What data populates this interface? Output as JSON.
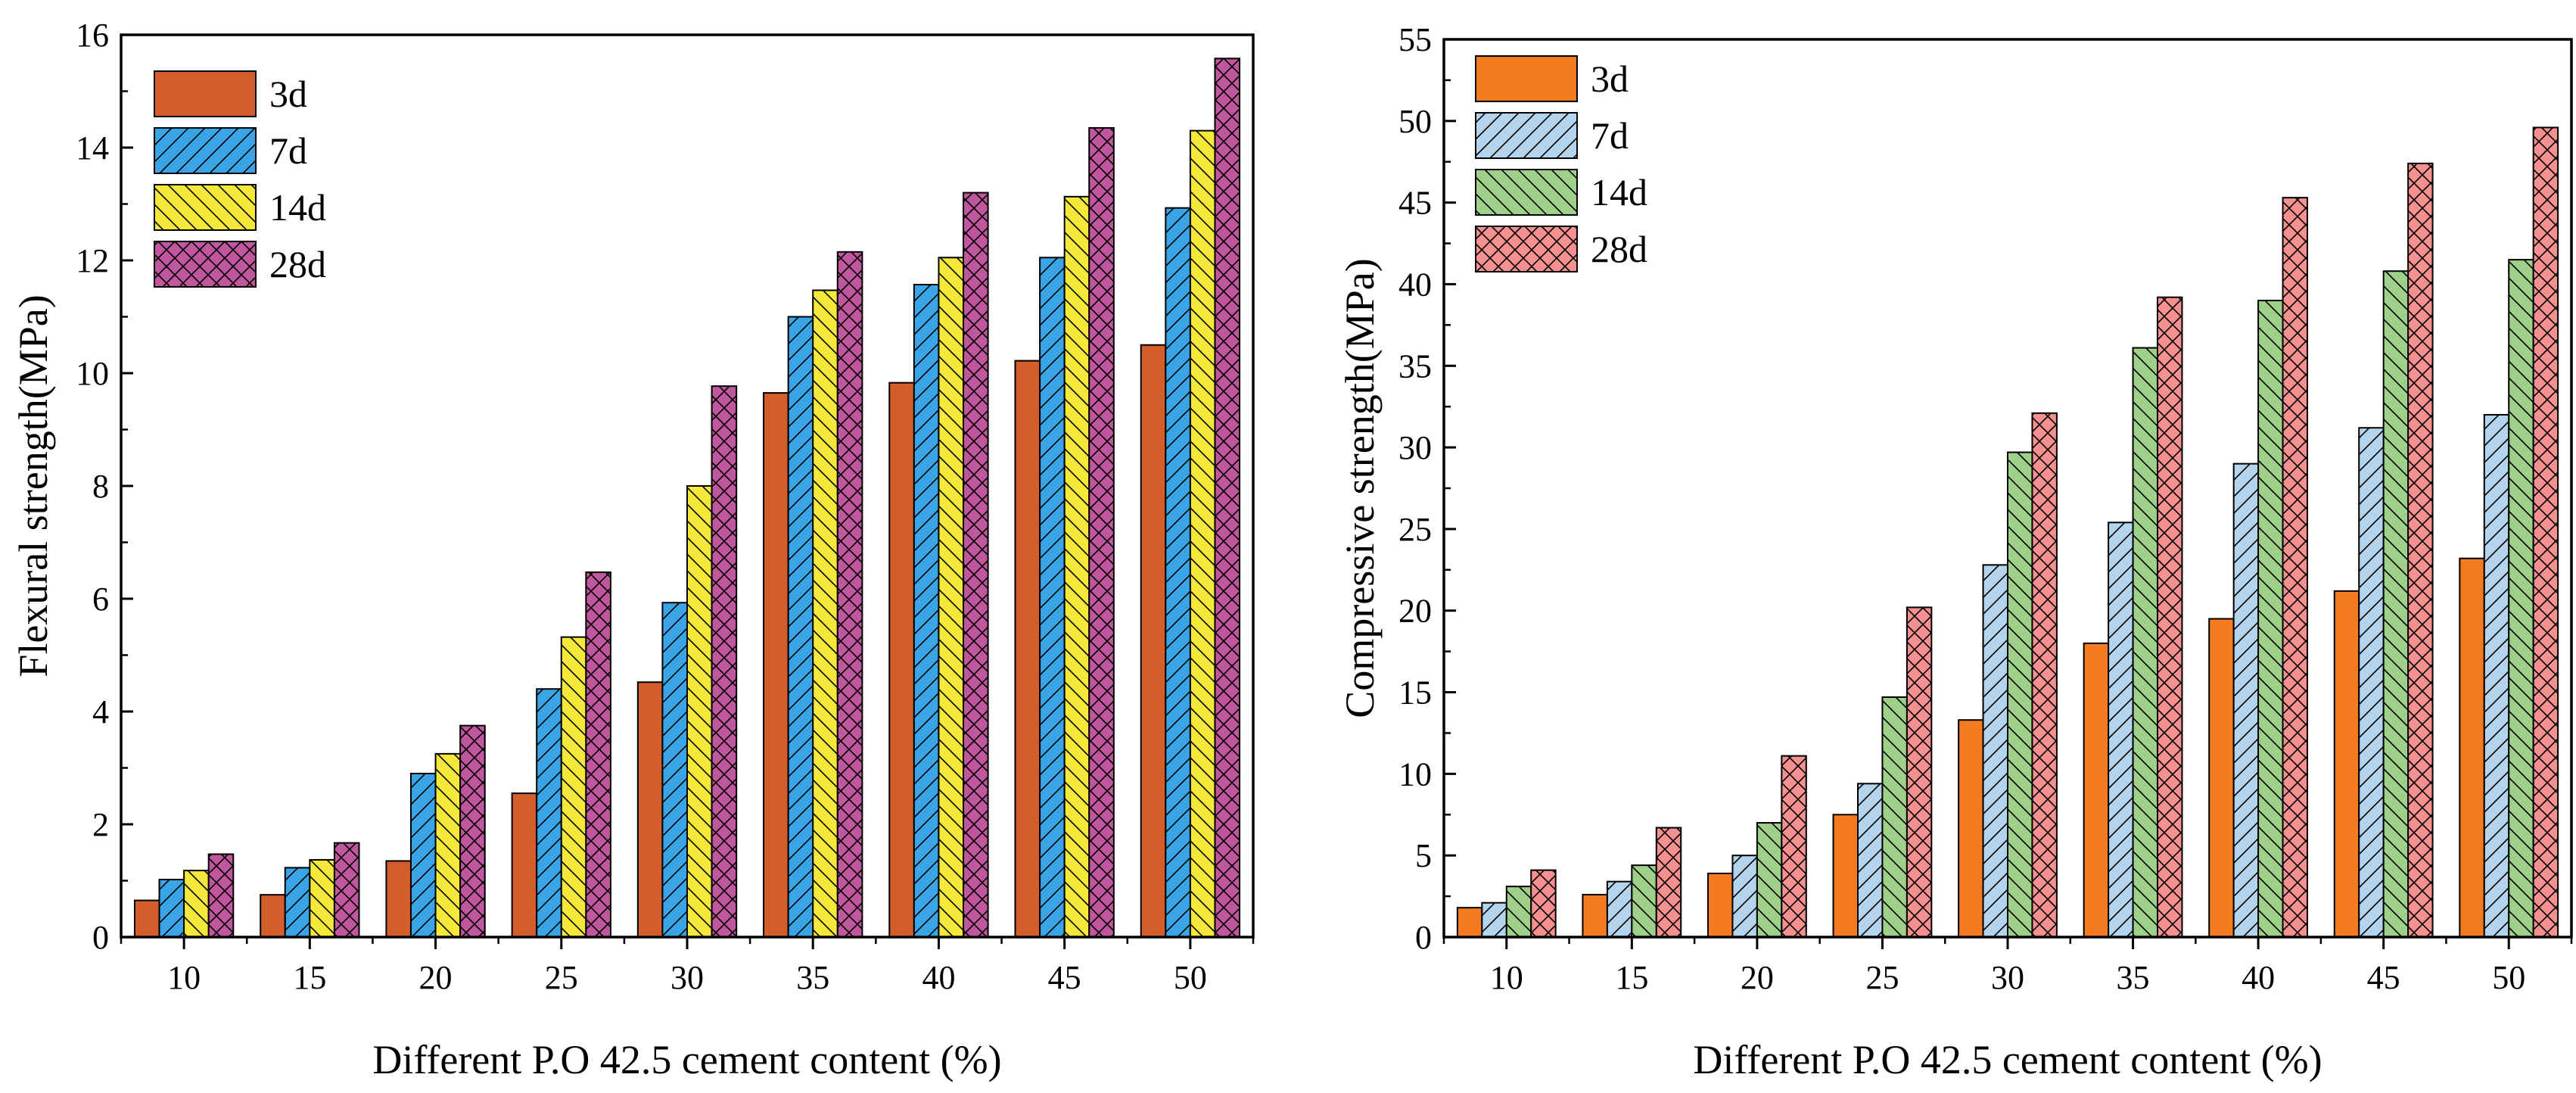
{
  "chart_data": [
    {
      "type": "bar",
      "xlabel": "Different P.O 42.5 cement content (%)",
      "ylabel": "Flexural strength(MPa)",
      "ylim": [
        0,
        16
      ],
      "yticks": [
        0,
        2,
        4,
        6,
        8,
        10,
        12,
        14,
        16
      ],
      "categories": [
        "10",
        "15",
        "20",
        "25",
        "30",
        "35",
        "40",
        "45",
        "50"
      ],
      "legend_position": "top-left",
      "grid": false,
      "series": [
        {
          "name": "3d",
          "color": "#d35e2b",
          "pattern": "none",
          "values": [
            0.65,
            0.75,
            1.35,
            2.55,
            4.52,
            9.65,
            9.83,
            10.22,
            10.5
          ]
        },
        {
          "name": "7d",
          "color": "#3aa5e6",
          "pattern": "diagonal-up",
          "values": [
            1.02,
            1.23,
            2.9,
            4.4,
            5.93,
            11.0,
            11.57,
            12.05,
            12.93
          ]
        },
        {
          "name": "14d",
          "color": "#f4e93a",
          "pattern": "diagonal-down",
          "values": [
            1.18,
            1.37,
            3.25,
            5.32,
            8.0,
            11.47,
            12.05,
            13.13,
            14.3
          ]
        },
        {
          "name": "28d",
          "color": "#c0579e",
          "pattern": "crosshatch",
          "values": [
            1.47,
            1.67,
            3.75,
            6.47,
            9.77,
            12.15,
            13.2,
            14.35,
            15.58
          ]
        }
      ]
    },
    {
      "type": "bar",
      "xlabel": "Different P.O 42.5 cement content (%)",
      "ylabel": "Compressive strength(MPa)",
      "ylim": [
        0,
        55
      ],
      "yticks": [
        0,
        5,
        10,
        15,
        20,
        25,
        30,
        35,
        40,
        45,
        50,
        55
      ],
      "categories": [
        "10",
        "15",
        "20",
        "25",
        "30",
        "35",
        "40",
        "45",
        "50"
      ],
      "legend_position": "top-left",
      "grid": false,
      "series": [
        {
          "name": "3d",
          "color": "#f47b20",
          "pattern": "none",
          "values": [
            1.8,
            2.6,
            3.9,
            7.5,
            13.3,
            18.0,
            19.5,
            21.2,
            23.2
          ]
        },
        {
          "name": "7d",
          "color": "#b3d4ec",
          "pattern": "diagonal-up",
          "values": [
            2.1,
            3.4,
            5.0,
            9.4,
            22.8,
            25.4,
            29.0,
            31.2,
            32.0
          ]
        },
        {
          "name": "14d",
          "color": "#9fd08a",
          "pattern": "diagonal-down",
          "values": [
            3.1,
            4.4,
            7.0,
            14.7,
            29.7,
            36.1,
            39.0,
            40.8,
            41.5
          ]
        },
        {
          "name": "28d",
          "color": "#f4908f",
          "pattern": "crosshatch",
          "values": [
            4.1,
            6.7,
            11.1,
            20.2,
            32.1,
            39.2,
            45.3,
            47.4,
            49.6
          ]
        }
      ]
    }
  ]
}
